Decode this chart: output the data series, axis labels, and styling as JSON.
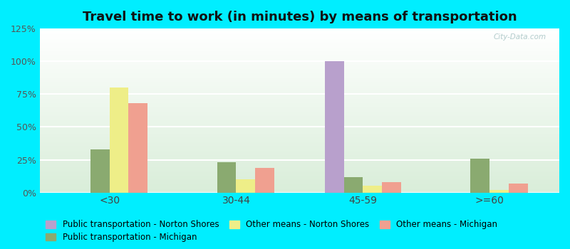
{
  "title": "Travel time to work (in minutes) by means of transportation",
  "categories": [
    "<30",
    "30-44",
    "45-59",
    ">=60"
  ],
  "series": [
    {
      "name": "Public transportation - Norton Shores",
      "color": "#b8a0cc",
      "values": [
        0,
        0,
        100,
        0
      ]
    },
    {
      "name": "Public transportation - Michigan",
      "color": "#8aaa70",
      "values": [
        33,
        23,
        12,
        26
      ]
    },
    {
      "name": "Other means - Norton Shores",
      "color": "#eeee88",
      "values": [
        80,
        10,
        5,
        2
      ]
    },
    {
      "name": "Other means - Michigan",
      "color": "#f0a090",
      "values": [
        68,
        19,
        8,
        7
      ]
    }
  ],
  "ylim": [
    0,
    125
  ],
  "yticks": [
    0,
    25,
    50,
    75,
    100,
    125
  ],
  "ytick_labels": [
    "0%",
    "25%",
    "50%",
    "75%",
    "100%",
    "125%"
  ],
  "background_color": "#00eeff",
  "title_color": "#111111",
  "title_fontsize": 13,
  "bar_width": 0.15,
  "watermark_text": "City-Data.com",
  "legend_fontsize": 8.5,
  "legend_order": [
    0,
    1,
    2,
    3
  ]
}
